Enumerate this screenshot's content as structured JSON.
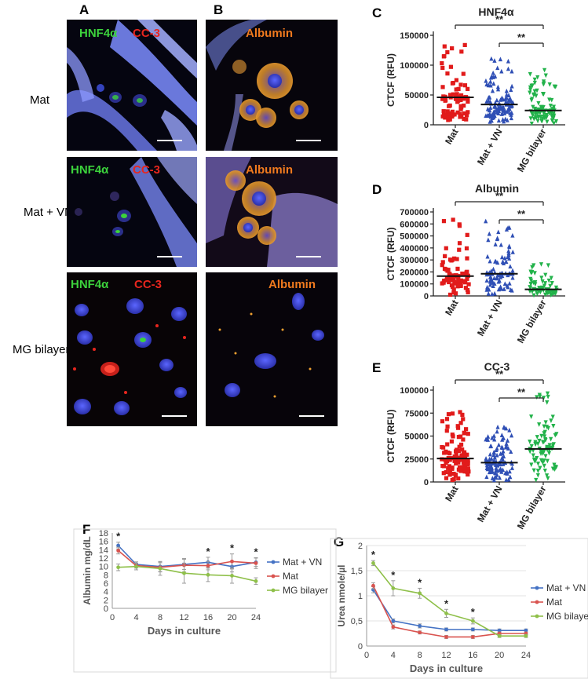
{
  "panel_letters": {
    "a": "A",
    "b": "B",
    "c": "C",
    "d": "D",
    "e": "E",
    "f": "F",
    "g": "G"
  },
  "row_labels": [
    "Mat",
    "Mat + VN",
    "MG bilayer"
  ],
  "micrographs": {
    "col_a_labels": {
      "green": "HNF4α",
      "red": "CC-3"
    },
    "col_b_label": "Albumin",
    "colors": {
      "green": "#3cd23c",
      "red": "#e8261e",
      "orange": "#f07a1e",
      "fiber": "#7f8cff",
      "nucleus": "#3f4bd8"
    }
  },
  "sig_marker": "**",
  "chart_data": [
    {
      "id": "C",
      "type": "scatter",
      "title": "HNF4α",
      "ylabel": "CTCF (RFU)",
      "ylim": [
        0,
        150000
      ],
      "yticks": [
        "0",
        "50000",
        "100000",
        "150000"
      ],
      "categories": [
        "Mat",
        "Mat + VN",
        "MG bilayer"
      ],
      "series": [
        {
          "color": "#e11b1b",
          "marker": "square",
          "n": 80,
          "median": 46000,
          "min": 8000,
          "max": 135000
        },
        {
          "color": "#2f4fb5",
          "marker": "triangle-up",
          "n": 110,
          "median": 34000,
          "min": 5000,
          "max": 112000
        },
        {
          "color": "#22b24a",
          "marker": "triangle-down",
          "n": 90,
          "median": 24000,
          "min": 2000,
          "max": 97000
        }
      ],
      "brackets": [
        [
          "Mat",
          "MG bilayer",
          "**"
        ],
        [
          "Mat + VN",
          "MG bilayer",
          "**"
        ]
      ]
    },
    {
      "id": "D",
      "type": "scatter",
      "title": "Albumin",
      "ylabel": "CTCF (RFU)",
      "ylim": [
        0,
        700000
      ],
      "yticks": [
        "0",
        "100000",
        "200000",
        "300000",
        "400000",
        "500000",
        "600000",
        "700000"
      ],
      "categories": [
        "Mat",
        "Mat + VN",
        "MG bilayer"
      ],
      "series": [
        {
          "color": "#e11b1b",
          "marker": "square",
          "n": 75,
          "median": 165000,
          "min": 10000,
          "max": 650000
        },
        {
          "color": "#2f4fb5",
          "marker": "triangle-up",
          "n": 95,
          "median": 185000,
          "min": 15000,
          "max": 625000
        },
        {
          "color": "#22b24a",
          "marker": "triangle-down",
          "n": 70,
          "median": 55000,
          "min": 5000,
          "max": 270000
        }
      ],
      "brackets": [
        [
          "Mat",
          "MG bilayer",
          "**"
        ],
        [
          "Mat + VN",
          "MG bilayer",
          "**"
        ]
      ]
    },
    {
      "id": "E",
      "type": "scatter",
      "title": "CC-3",
      "ylabel": "CTCF (RFU)",
      "ylim": [
        0,
        100000
      ],
      "yticks": [
        "0",
        "25000",
        "50000",
        "75000",
        "100000"
      ],
      "categories": [
        "Mat",
        "Mat + VN",
        "MG bilayer"
      ],
      "series": [
        {
          "color": "#e11b1b",
          "marker": "square",
          "n": 110,
          "median": 25500,
          "min": 2000,
          "max": 78000
        },
        {
          "color": "#2f4fb5",
          "marker": "triangle-up",
          "n": 110,
          "median": 21000,
          "min": 2000,
          "max": 63000
        },
        {
          "color": "#22b24a",
          "marker": "triangle-down",
          "n": 85,
          "median": 36000,
          "min": 2000,
          "max": 100000
        }
      ],
      "brackets": [
        [
          "Mat",
          "MG bilayer",
          "**"
        ],
        [
          "Mat + VN",
          "MG bilayer",
          "**"
        ]
      ]
    },
    {
      "id": "F",
      "type": "line",
      "ylabel": "Albumin mg/dL",
      "xlabel": "Days in culture",
      "x": [
        1,
        4,
        8,
        12,
        16,
        20,
        24
      ],
      "xticks": [
        "0",
        "4",
        "8",
        "12",
        "16",
        "20",
        "24"
      ],
      "ylim": [
        0,
        18
      ],
      "yticks": [
        "0",
        "2",
        "4",
        "6",
        "8",
        "10",
        "12",
        "14",
        "16",
        "18"
      ],
      "series": [
        {
          "name": "Mat + VN",
          "color": "#4472c4",
          "values": [
            15,
            10.5,
            10,
            10.5,
            11,
            10,
            11
          ],
          "err": [
            0.8,
            0.6,
            1.2,
            1.2,
            1.2,
            1.3,
            1.0
          ]
        },
        {
          "name": "Mat",
          "color": "#d9534f",
          "values": [
            13.8,
            10.2,
            9.8,
            10.3,
            10.2,
            11.2,
            10.8
          ],
          "err": [
            0.8,
            0.6,
            1.1,
            1.6,
            1.0,
            1.8,
            1.3
          ]
        },
        {
          "name": "MG bilayer",
          "color": "#8fc04a",
          "values": [
            9.8,
            10.0,
            9.5,
            8.4,
            8.0,
            7.8,
            6.5
          ],
          "err": [
            0.8,
            0.8,
            1.6,
            2.4,
            1.6,
            1.8,
            0.8
          ]
        }
      ],
      "stars_at": [
        1,
        16,
        20,
        24
      ],
      "star": "*"
    },
    {
      "id": "G",
      "type": "line",
      "ylabel": "Urea nmole/µl",
      "xlabel": "Days in culture",
      "x": [
        1,
        4,
        8,
        12,
        16,
        20,
        24
      ],
      "xticks": [
        "0",
        "4",
        "8",
        "12",
        "16",
        "20",
        "24"
      ],
      "ylim": [
        0,
        2
      ],
      "yticks": [
        "0",
        "0,5",
        "1",
        "1,5",
        "2"
      ],
      "series": [
        {
          "name": "Mat + VN",
          "color": "#4472c4",
          "values": [
            1.12,
            0.5,
            0.4,
            0.33,
            0.33,
            0.31,
            0.31
          ],
          "err": [
            0.06,
            0.04,
            0.04,
            0.03,
            0.03,
            0.03,
            0.03
          ]
        },
        {
          "name": "Mat",
          "color": "#d9534f",
          "values": [
            1.2,
            0.38,
            0.27,
            0.18,
            0.18,
            0.25,
            0.25
          ],
          "err": [
            0.06,
            0.04,
            0.03,
            0.03,
            0.03,
            0.03,
            0.03
          ]
        },
        {
          "name": "MG bilayer",
          "color": "#8fc04a",
          "values": [
            1.65,
            1.15,
            1.05,
            0.65,
            0.5,
            0.2,
            0.2
          ],
          "err": [
            0.05,
            0.15,
            0.1,
            0.08,
            0.06,
            0.03,
            0.03
          ]
        }
      ],
      "stars_at": [
        1,
        4,
        8,
        12,
        16
      ],
      "star": "*"
    }
  ]
}
